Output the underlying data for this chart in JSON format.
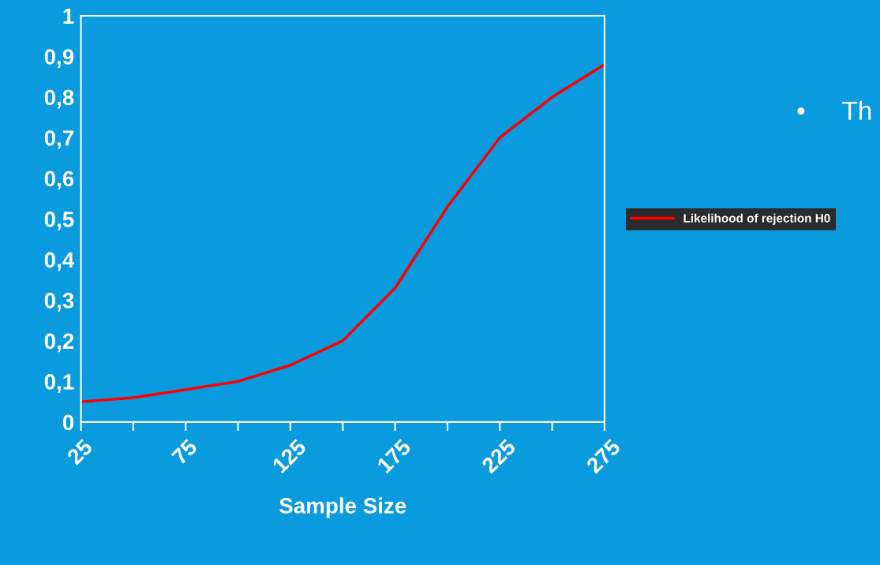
{
  "chart_data": {
    "type": "line",
    "xlabel": "Sample Size",
    "x": [
      25,
      50,
      75,
      100,
      125,
      150,
      175,
      200,
      225,
      250,
      275
    ],
    "series": [
      {
        "name": "Likelihood of rejection H0",
        "color": "#ff0000",
        "values": [
          0.05,
          0.06,
          0.08,
          0.1,
          0.14,
          0.2,
          0.33,
          0.53,
          0.7,
          0.8,
          0.88
        ]
      }
    ],
    "xlim": [
      25,
      275
    ],
    "xticks": [
      25,
      {
        "value": 50,
        "label": null
      },
      75,
      {
        "value": 100,
        "label": null
      },
      125,
      {
        "value": 150,
        "label": null
      },
      175,
      {
        "value": 200,
        "label": null
      },
      225,
      {
        "value": 250,
        "label": null
      },
      275
    ],
    "ylim": [
      0,
      1
    ],
    "yticks": [
      {
        "value": 0,
        "label": "0"
      },
      {
        "value": 0.1,
        "label": "0,1"
      },
      {
        "value": 0.2,
        "label": "0,2"
      },
      {
        "value": 0.3,
        "label": "0,3"
      },
      {
        "value": 0.4,
        "label": "0,4"
      },
      {
        "value": 0.5,
        "label": "0,5"
      },
      {
        "value": 0.6,
        "label": "0,6"
      },
      {
        "value": 0.7,
        "label": "0,7"
      },
      {
        "value": 0.8,
        "label": "0,8"
      },
      {
        "value": 0.9,
        "label": "0,9"
      },
      {
        "value": 1,
        "label": "1"
      }
    ],
    "annotations": [
      "•     Th"
    ],
    "grid": false,
    "legend": "right",
    "marker": "none",
    "line_style": "solid"
  }
}
